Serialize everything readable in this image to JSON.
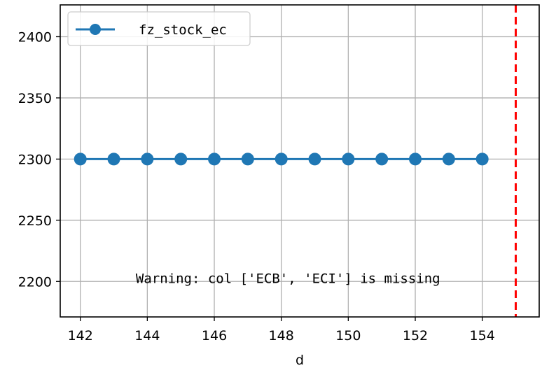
{
  "chart_data": {
    "type": "line",
    "xlabel": "d",
    "ylabel": "",
    "xlim": [
      141.4,
      155.7
    ],
    "ylim": [
      2171,
      2426
    ],
    "xticks": [
      142,
      144,
      146,
      148,
      150,
      152,
      154
    ],
    "yticks": [
      2200,
      2250,
      2300,
      2350,
      2400
    ],
    "grid": true,
    "legend_position": "top-left",
    "series": [
      {
        "name": "fz_stock_ec",
        "color": "#1f77b4",
        "marker": "circle",
        "x": [
          142,
          143,
          144,
          145,
          146,
          147,
          148,
          149,
          150,
          151,
          152,
          153,
          154
        ],
        "y": [
          2300,
          2300,
          2300,
          2300,
          2300,
          2300,
          2300,
          2300,
          2300,
          2300,
          2300,
          2300,
          2300
        ]
      }
    ],
    "vline": {
      "x": 155,
      "color": "#ff0000",
      "style": "dashed"
    },
    "annotation": {
      "text": "Warning: col ['ECB', 'ECI'] is missing",
      "x": 148.2,
      "y": 2200
    }
  }
}
